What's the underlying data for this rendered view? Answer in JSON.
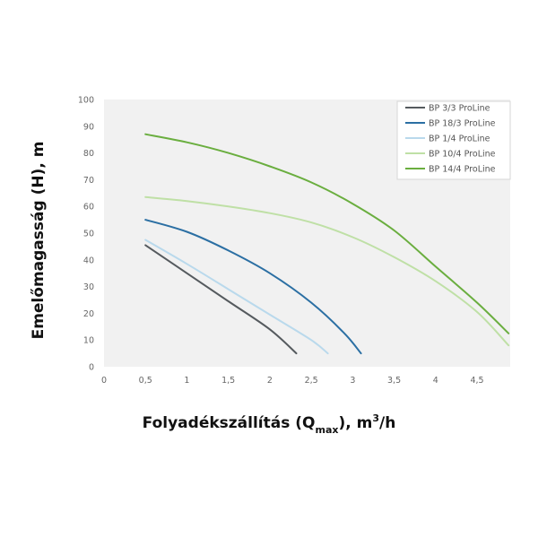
{
  "chart_data": {
    "type": "line",
    "ylabel": "Emelőmagasság (H), m",
    "xlabel_parts": {
      "main": "Folyadékszállítás (Q",
      "subscript": "max",
      "close": "), m",
      "superscript": "3",
      "tail": "/h"
    },
    "xlim": [
      0,
      4.9
    ],
    "ylim": [
      0,
      100
    ],
    "x_ticks": [
      0,
      0.5,
      1,
      1.5,
      2,
      2.5,
      3,
      3.5,
      4,
      4.5
    ],
    "x_tick_labels": [
      "0",
      "0,5",
      "1",
      "1,5",
      "2",
      "2,5",
      "3",
      "3,5",
      "4",
      "4,5"
    ],
    "y_ticks": [
      0,
      10,
      20,
      30,
      40,
      50,
      60,
      70,
      80,
      90,
      100
    ],
    "y_tick_labels": [
      "0",
      "10",
      "20",
      "30",
      "40",
      "50",
      "60",
      "70",
      "80",
      "90",
      "100"
    ],
    "grid": false,
    "legend_position": "top-right",
    "series": [
      {
        "name": "BP 3/3 ProLine",
        "color": "#555a5e",
        "x": [
          0.5,
          1.0,
          1.5,
          2.0,
          2.32
        ],
        "y": [
          45.5,
          35,
          24.5,
          14,
          5
        ]
      },
      {
        "name": "BP 18/3 ProLine",
        "color": "#2b6fa3",
        "x": [
          0.5,
          1.0,
          1.5,
          2.0,
          2.5,
          2.9,
          3.1
        ],
        "y": [
          55,
          50.5,
          43.5,
          35,
          24,
          12.5,
          5
        ]
      },
      {
        "name": "BP 1/4 ProLine",
        "color": "#b9d9ec",
        "x": [
          0.5,
          1.0,
          1.5,
          2.0,
          2.5,
          2.7
        ],
        "y": [
          47.5,
          38.5,
          29,
          19.5,
          10,
          5
        ]
      },
      {
        "name": "BP 10/4 ProLine",
        "color": "#bfe0a6",
        "x": [
          0.5,
          1.0,
          1.5,
          2.0,
          2.5,
          3.0,
          3.5,
          4.0,
          4.5,
          4.88
        ],
        "y": [
          63.5,
          62,
          60,
          57.5,
          54,
          48.5,
          41,
          32,
          20.5,
          8
        ]
      },
      {
        "name": "BP 14/4 ProLine",
        "color": "#6aae3f",
        "x": [
          0.5,
          1.0,
          1.5,
          2.0,
          2.5,
          3.0,
          3.5,
          4.0,
          4.5,
          4.88
        ],
        "y": [
          87,
          84,
          80,
          75,
          69,
          61,
          51,
          37.5,
          24,
          12.5
        ]
      }
    ]
  }
}
